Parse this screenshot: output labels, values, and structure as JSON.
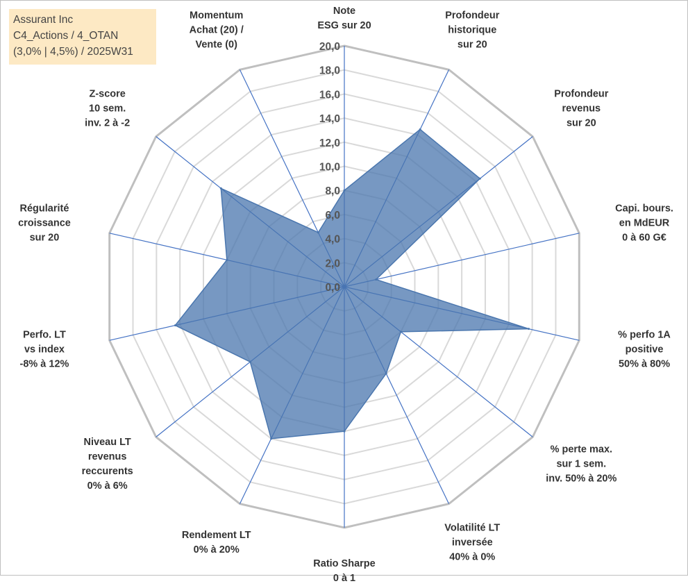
{
  "header": {
    "lines": [
      "Assurant Inc",
      "C4_Actions / 4_OTAN",
      "(3,0% | 4,5%) / 2025W31"
    ]
  },
  "colors": {
    "fill": "#4a76ae",
    "fill_opacity": 0.75,
    "axis": "#4472c4",
    "grid_outer": "#bfbfbf",
    "grid_inner": "#d9d9d9"
  },
  "chart_data": {
    "type": "radar",
    "rmin": 0,
    "rmax": 20,
    "tick_step": 2,
    "tick_labels": [
      "0,0",
      "2,0",
      "4,0",
      "6,0",
      "8,0",
      "10,0",
      "12,0",
      "14,0",
      "16,0",
      "18,0",
      "20,0"
    ],
    "axes": [
      {
        "label": [
          "Note",
          "ESG sur 20"
        ],
        "value": 8.0
      },
      {
        "label": [
          "Profondeur",
          "historique",
          "sur 20"
        ],
        "value": 14.5
      },
      {
        "label": [
          "Profondeur",
          "revenus",
          "sur 20"
        ],
        "value": 14.4
      },
      {
        "label": [
          "Capi. bours.",
          "en MdEUR",
          "0 à 60 G€"
        ],
        "value": 2.7
      },
      {
        "label": [
          "% perfo 1A",
          "positive",
          "50% à 80%"
        ],
        "value": 15.7
      },
      {
        "label": [
          "% perte max.",
          "sur 1 sem.",
          "inv. 50% à 20%"
        ],
        "value": 6.0
      },
      {
        "label": [
          "Volatilité LT",
          "inversée",
          "40% à 0%"
        ],
        "value": 8.0
      },
      {
        "label": [
          "Ratio Sharpe",
          "0 à 1"
        ],
        "value": 12.0
      },
      {
        "label": [
          "Rendement LT",
          "0% à 20%"
        ],
        "value": 14.0
      },
      {
        "label": [
          "Niveau LT",
          "revenus",
          "reccurents",
          "0% à 6%"
        ],
        "value": 10.0
      },
      {
        "label": [
          "Perfo. LT",
          "vs index",
          "-8% à 12%"
        ],
        "value": 14.4
      },
      {
        "label": [
          "Régularité",
          "croissance",
          "sur 20"
        ],
        "value": 10.0
      },
      {
        "label": [
          "Z-score",
          "10 sem.",
          "inv. 2 à -2"
        ],
        "value": 13.1
      },
      {
        "label": [
          "Momentum",
          "Achat (20) /",
          "Vente (0)"
        ],
        "value": 5.0
      }
    ]
  }
}
